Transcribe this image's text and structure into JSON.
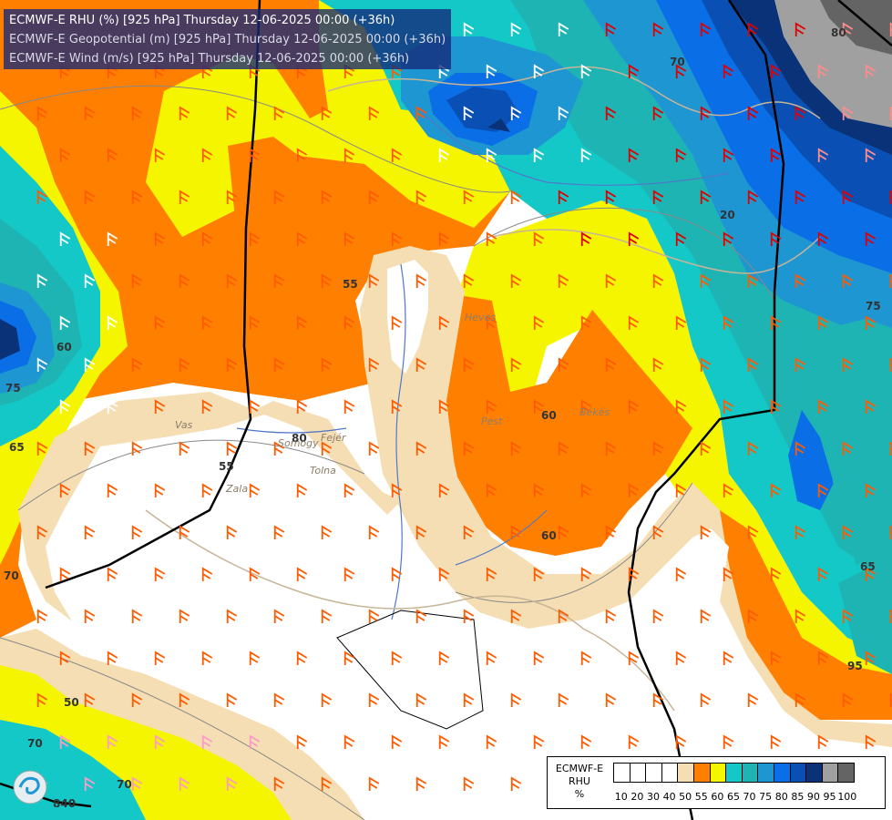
{
  "title": {
    "line1": "ECMWF-E RHU (%) [925 hPa] Thursday 12-06-2025 00:00 (+36h)",
    "line2": "ECMWF-E Geopotential (m) [925 hPa] Thursday 12-06-2025 00:00 (+36h)",
    "line3": "ECMWF-E Wind (m/s) [925 hPa] Thursday 12-06-2025 00:00 (+36h)"
  },
  "legend": {
    "model": "ECMWF-E",
    "variable": "RHU",
    "unit": "%",
    "ticks": [
      "10",
      "20",
      "30",
      "40",
      "50",
      "55",
      "60",
      "65",
      "70",
      "75",
      "80",
      "85",
      "90",
      "95",
      "100"
    ],
    "colors": [
      "#ffffff",
      "#ffffff",
      "#ffffff",
      "#ffffff",
      "#f5deb3",
      "#ff8000",
      "#f5f500",
      "#14c8c8",
      "#1eb4b4",
      "#1e96d2",
      "#0a6ee6",
      "#0a50b4",
      "#0a3278",
      "#a0a0a0",
      "#646464"
    ]
  },
  "contour_labels": [
    "55",
    "60",
    "70",
    "75",
    "80",
    "95",
    "65",
    "70",
    "60",
    "55",
    "50",
    "65",
    "70",
    "60",
    "75",
    "80",
    "70",
    "840",
    "20"
  ],
  "place_names": [
    "Vas",
    "Somogy",
    "Tolna",
    "Fejér",
    "Pest",
    "Békés",
    "Heves",
    "Zala"
  ],
  "colors": {
    "white": "#ffffff",
    "tan": "#f5deb3",
    "orange": "#ff8000",
    "yellow": "#f5f500",
    "cyan": "#14c8c8",
    "teal": "#1eb4b4",
    "blue1": "#1e96d2",
    "blue2": "#0a6ee6",
    "blue3": "#0a50b4",
    "navy": "#0a3278",
    "grey": "#a0a0a0",
    "darkgrey": "#646464",
    "border_black": "#000000",
    "river": "#5078c8",
    "border_tan": "#c8b496"
  }
}
